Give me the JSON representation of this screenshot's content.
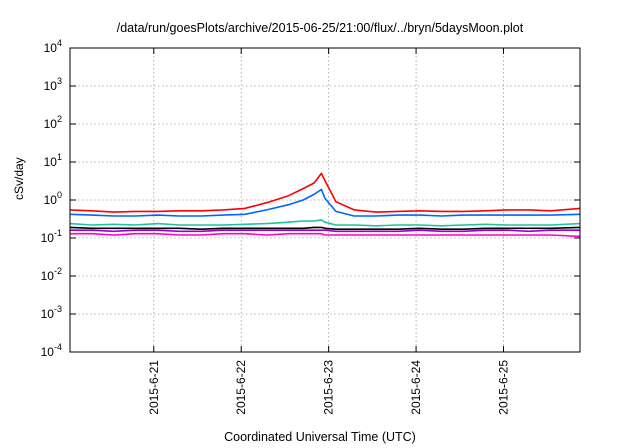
{
  "chart_data": {
    "type": "line",
    "title": "/data/run/goesPlots/archive/2015-06-25/21:00/flux/../bryn/5daysMoon.plot",
    "xlabel": "Coordinated Universal Time (UTC)",
    "ylabel": "cSv/day",
    "yscale": "log",
    "ylim": [
      0.0001,
      10000
    ],
    "y_ticks": [
      {
        "exp": "-4",
        "value": 0.0001
      },
      {
        "exp": "-3",
        "value": 0.001
      },
      {
        "exp": "-2",
        "value": 0.01
      },
      {
        "exp": "-1",
        "value": 0.1
      },
      {
        "exp": "0",
        "value": 1
      },
      {
        "exp": "1",
        "value": 10
      },
      {
        "exp": "2",
        "value": 100
      },
      {
        "exp": "3",
        "value": 1000
      },
      {
        "exp": "4",
        "value": 10000
      }
    ],
    "xlim": [
      "2015-06-20 01:00",
      "2015-06-25 21:00"
    ],
    "x_ticks": [
      "2015-6-21",
      "2015-6-22",
      "2015-6-23",
      "2015-6-24",
      "2015-6-25"
    ],
    "grid": true,
    "x": [
      "2015-06-20 01:00",
      "2015-06-20 07:00",
      "2015-06-20 13:00",
      "2015-06-20 19:00",
      "2015-06-21 01:00",
      "2015-06-21 07:00",
      "2015-06-21 13:00",
      "2015-06-21 19:00",
      "2015-06-22 01:00",
      "2015-06-22 07:00",
      "2015-06-22 13:00",
      "2015-06-22 17:00",
      "2015-06-22 20:00",
      "2015-06-22 22:00",
      "2015-06-22 23:00",
      "2015-06-23 02:00",
      "2015-06-23 07:00",
      "2015-06-23 13:00",
      "2015-06-23 19:00",
      "2015-06-24 01:00",
      "2015-06-24 07:00",
      "2015-06-24 13:00",
      "2015-06-24 19:00",
      "2015-06-25 01:00",
      "2015-06-25 07:00",
      "2015-06-25 13:00",
      "2015-06-25 21:00"
    ],
    "series": [
      {
        "color": "#ff0000",
        "values": [
          0.55,
          0.52,
          0.48,
          0.5,
          0.5,
          0.52,
          0.52,
          0.55,
          0.6,
          0.85,
          1.3,
          2.0,
          2.8,
          5.0,
          3.2,
          0.9,
          0.55,
          0.48,
          0.5,
          0.52,
          0.5,
          0.5,
          0.52,
          0.55,
          0.55,
          0.52,
          0.6
        ]
      },
      {
        "color": "#0066ff",
        "values": [
          0.42,
          0.4,
          0.38,
          0.38,
          0.4,
          0.38,
          0.38,
          0.4,
          0.42,
          0.55,
          0.75,
          1.0,
          1.4,
          1.9,
          1.1,
          0.5,
          0.38,
          0.38,
          0.4,
          0.4,
          0.38,
          0.4,
          0.4,
          0.4,
          0.4,
          0.4,
          0.42
        ]
      },
      {
        "color": "#20c0a0",
        "values": [
          0.24,
          0.22,
          0.23,
          0.22,
          0.24,
          0.22,
          0.22,
          0.22,
          0.23,
          0.24,
          0.26,
          0.28,
          0.28,
          0.3,
          0.26,
          0.22,
          0.22,
          0.21,
          0.22,
          0.22,
          0.21,
          0.22,
          0.23,
          0.22,
          0.22,
          0.22,
          0.24
        ]
      },
      {
        "color": "#000000",
        "values": [
          0.19,
          0.18,
          0.18,
          0.18,
          0.18,
          0.18,
          0.17,
          0.18,
          0.18,
          0.18,
          0.18,
          0.18,
          0.19,
          0.19,
          0.18,
          0.17,
          0.17,
          0.17,
          0.17,
          0.18,
          0.17,
          0.17,
          0.18,
          0.18,
          0.18,
          0.18,
          0.19
        ]
      },
      {
        "color": "#9900cc",
        "values": [
          0.16,
          0.16,
          0.15,
          0.16,
          0.16,
          0.15,
          0.15,
          0.16,
          0.16,
          0.16,
          0.16,
          0.16,
          0.16,
          0.16,
          0.16,
          0.15,
          0.15,
          0.15,
          0.15,
          0.16,
          0.15,
          0.15,
          0.16,
          0.16,
          0.15,
          0.16,
          0.16
        ]
      },
      {
        "color": "#ff00cc",
        "values": [
          0.13,
          0.13,
          0.12,
          0.13,
          0.13,
          0.12,
          0.12,
          0.13,
          0.13,
          0.12,
          0.13,
          0.13,
          0.13,
          0.13,
          0.12,
          0.12,
          0.12,
          0.12,
          0.12,
          0.12,
          0.12,
          0.12,
          0.12,
          0.12,
          0.12,
          0.12,
          0.11
        ]
      }
    ]
  }
}
